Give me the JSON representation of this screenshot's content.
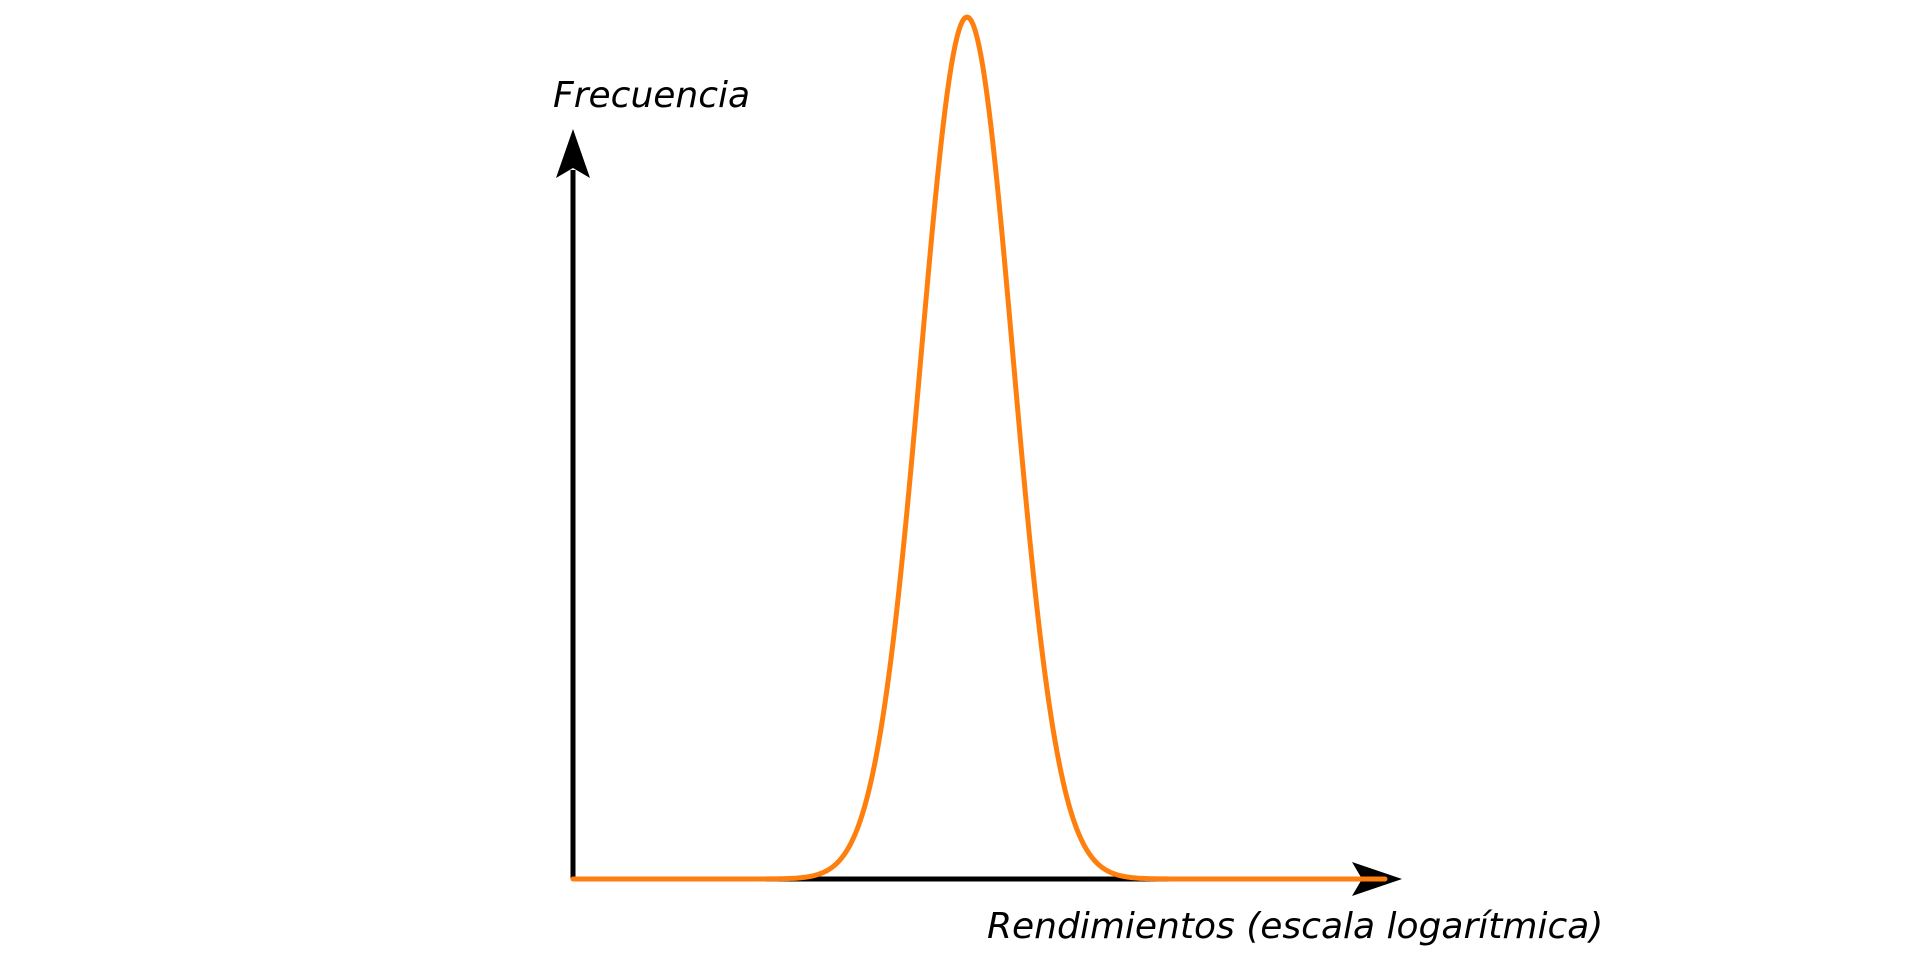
{
  "y_axis": {
    "label": "Frecuencia"
  },
  "x_axis": {
    "label": "Rendimientos (escala logarítmica)"
  }
}
